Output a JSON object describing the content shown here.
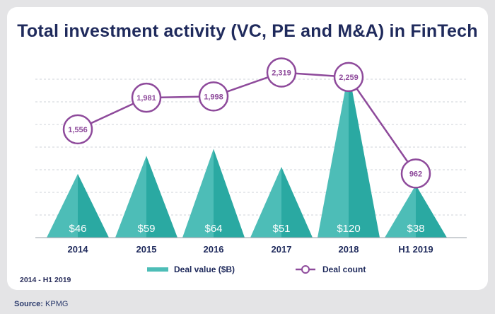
{
  "title": "Total investment activity (VC, PE and M&A) in FinTech",
  "period_note": "2014 - H1 2019",
  "source": {
    "label": "Source:",
    "value": "KPMG"
  },
  "colors": {
    "deal_value": "#4dbdb7",
    "deal_value_dark": "#2aa9a2",
    "deal_count": "#8e4a9b",
    "title": "#1f2a5c"
  },
  "chart_data": {
    "type": "bar",
    "categories": [
      "2014",
      "2015",
      "2016",
      "2017",
      "2018",
      "H1 2019"
    ],
    "series": [
      {
        "name": "Deal value ($B)",
        "kind": "triangle-bar",
        "values": [
          46,
          59,
          64,
          51,
          120,
          38
        ],
        "labels": [
          "$46",
          "$59",
          "$64",
          "$51",
          "$120",
          "$38"
        ]
      },
      {
        "name": "Deal count",
        "kind": "line",
        "values": [
          1556,
          1981,
          1998,
          2319,
          2259,
          962
        ],
        "labels": [
          "1,556",
          "1,981",
          "1,998",
          "2,319",
          "2,259",
          "962"
        ]
      }
    ],
    "title": "Total investment activity (VC, PE and M&A) in FinTech",
    "subtitle": "2014 - H1 2019",
    "legend": "bottom",
    "grid": true
  }
}
